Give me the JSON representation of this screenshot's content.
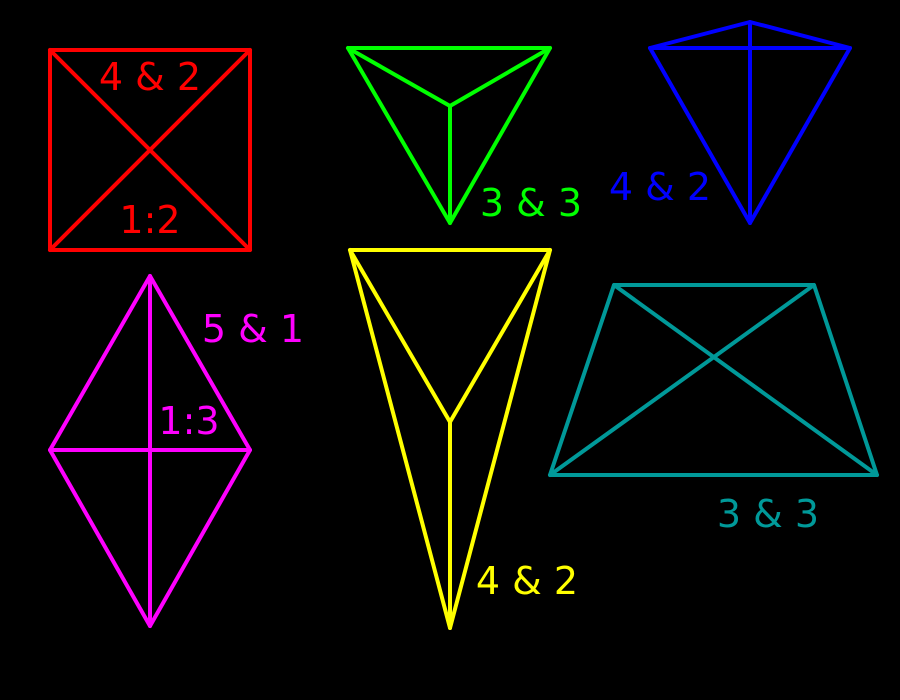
{
  "background": "#000000",
  "shapes": [
    {
      "id": "red-square",
      "name": "square",
      "color": "#ff0000",
      "labels": [
        "4 & 2",
        "1:2"
      ]
    },
    {
      "id": "green-triangle",
      "name": "triangle",
      "color": "#00ff00",
      "labels": [
        "3 & 3"
      ]
    },
    {
      "id": "blue-kite",
      "name": "kite",
      "color": "#0000ff",
      "labels": [
        "4 & 2"
      ]
    },
    {
      "id": "magenta-rhombus",
      "name": "rhombus",
      "color": "#ff00ff",
      "labels": [
        "5 & 1",
        "1:3"
      ]
    },
    {
      "id": "yellow-dart",
      "name": "dart",
      "color": "#ffff00",
      "labels": [
        "4 & 2"
      ]
    },
    {
      "id": "teal-trapezoid",
      "name": "trapezoid",
      "color": "#009999",
      "labels": [
        "3 & 3"
      ]
    }
  ]
}
